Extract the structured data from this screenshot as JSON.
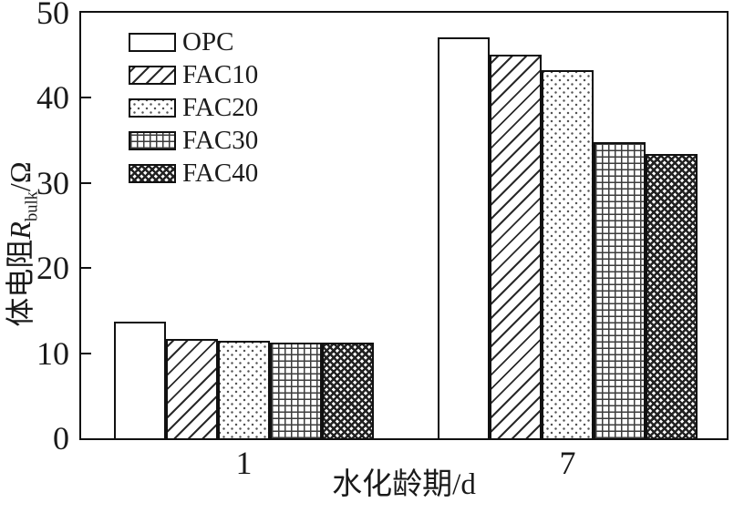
{
  "figure": {
    "background": "#ffffff",
    "ink_color": "#1a1a1a"
  },
  "chart_data": {
    "type": "bar",
    "title": "",
    "categories": [
      "1",
      "7"
    ],
    "series": [
      {
        "name": "OPC",
        "hatch": "none",
        "values": [
          13.7,
          47.1
        ]
      },
      {
        "name": "FAC10",
        "hatch": "diagonal",
        "values": [
          11.7,
          45.1
        ]
      },
      {
        "name": "FAC20",
        "hatch": "dots",
        "values": [
          11.5,
          43.3
        ]
      },
      {
        "name": "FAC30",
        "hatch": "grid",
        "values": [
          11.2,
          34.8
        ]
      },
      {
        "name": "FAC40",
        "hatch": "crosshatch",
        "values": [
          11.2,
          33.4
        ]
      }
    ],
    "xlabel": "水化龄期/d",
    "ylabel": "体电阻R_bulk/Ω",
    "ylabel_parts": {
      "prefix": "体电阻",
      "symbol": "R",
      "subscript": "bulk",
      "suffix": "/Ω"
    },
    "ylim": [
      0,
      50
    ],
    "yticks": [
      0,
      10,
      20,
      30,
      40,
      50
    ],
    "legend_position": "upper-left",
    "grid": false
  }
}
